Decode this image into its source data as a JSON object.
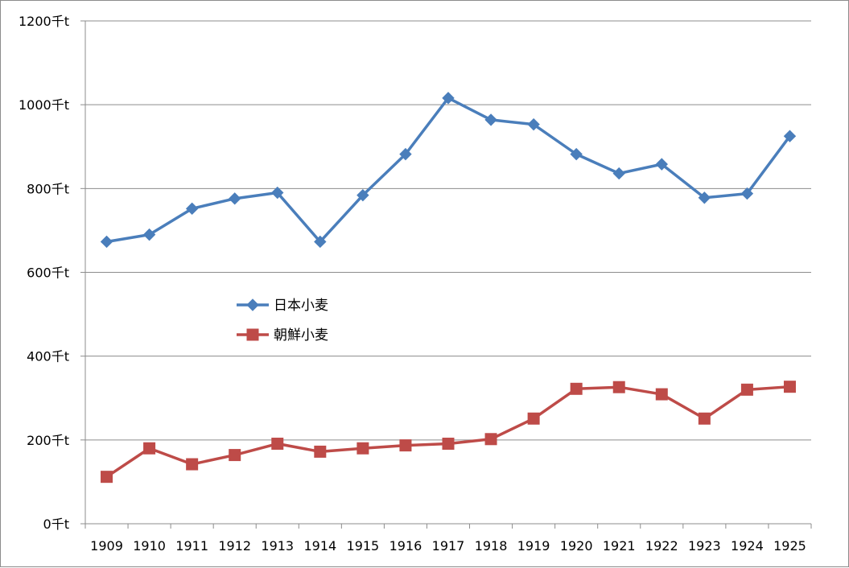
{
  "chart_data": {
    "type": "line",
    "title": "",
    "xlabel": "",
    "ylabel": "",
    "categories": [
      "1909",
      "1910",
      "1911",
      "1912",
      "1913",
      "1914",
      "1915",
      "1916",
      "1917",
      "1918",
      "1919",
      "1920",
      "1921",
      "1922",
      "1923",
      "1924",
      "1925"
    ],
    "ylim": [
      0,
      1200
    ],
    "y_tick_labels": [
      "0千t",
      "200千t",
      "400千t",
      "600千t",
      "800千t",
      "1000千t",
      "1200千t"
    ],
    "y_ticks": [
      0,
      200,
      400,
      600,
      800,
      1000,
      1200
    ],
    "grid": true,
    "legend_position": "center-left",
    "series": [
      {
        "name": "日本小麦",
        "color": "#4a7ebb",
        "marker": "diamond",
        "values": [
          673,
          690,
          752,
          776,
          790,
          673,
          784,
          882,
          1016,
          964,
          953,
          882,
          836,
          858,
          778,
          788,
          925
        ]
      },
      {
        "name": "朝鮮小麦",
        "color": "#be4b48",
        "marker": "square",
        "values": [
          112,
          180,
          142,
          164,
          191,
          172,
          180,
          187,
          191,
          202,
          251,
          322,
          326,
          309,
          251,
          320,
          327
        ]
      }
    ]
  }
}
